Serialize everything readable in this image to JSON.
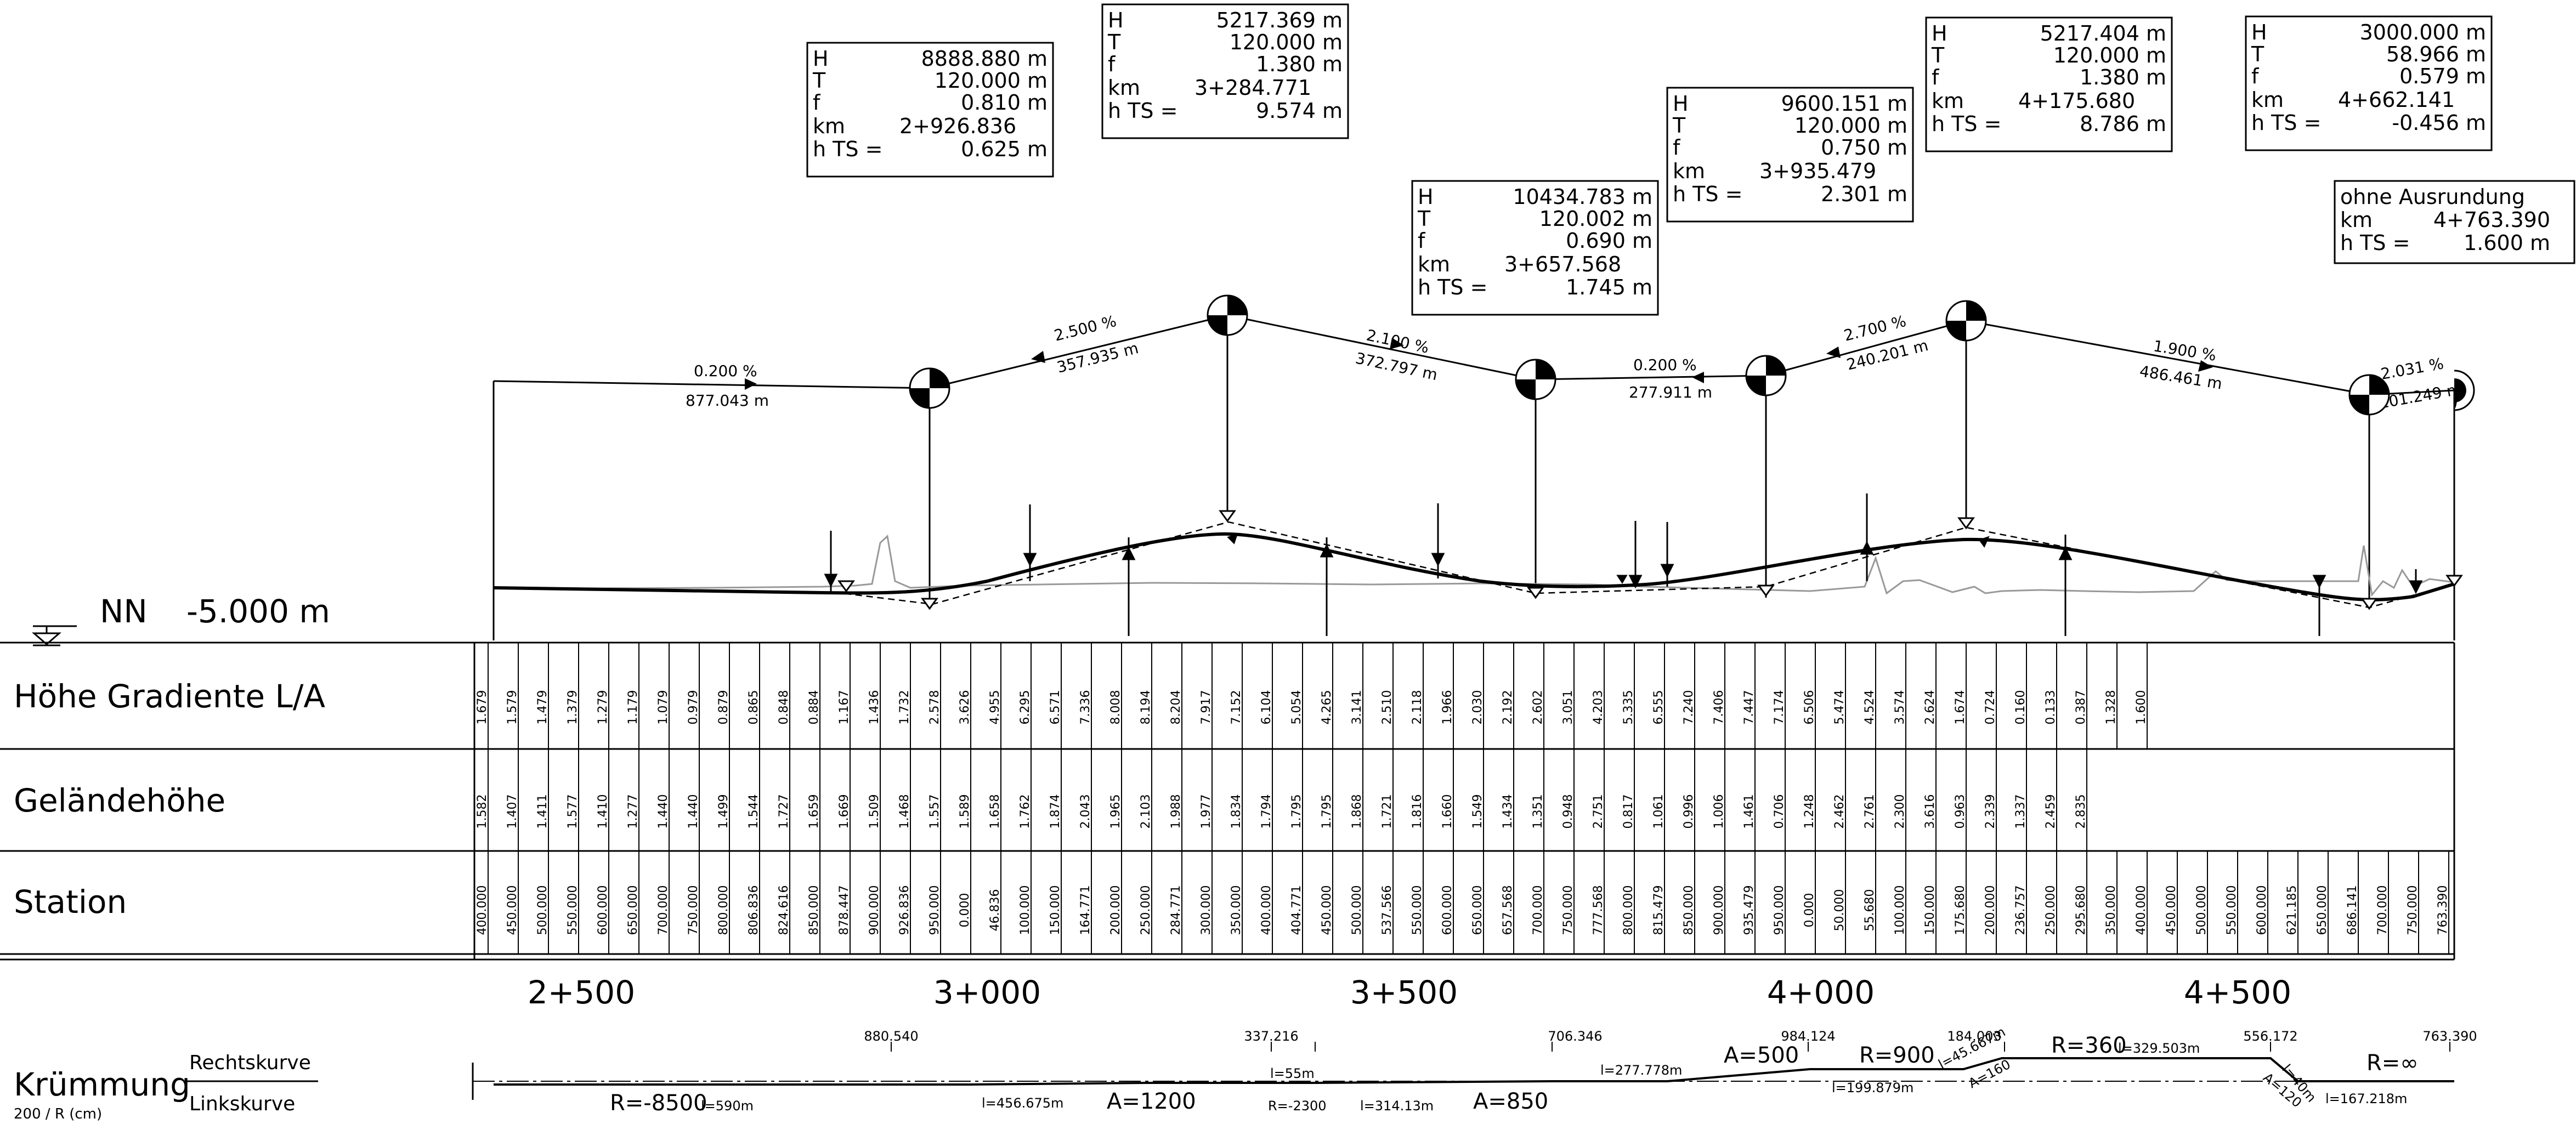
{
  "vertical_curves": [
    {
      "H": "8888.880 m",
      "T": "120.000 m",
      "f": "0.810 m",
      "km": "2+926.836",
      "hTS": "0.625 m"
    },
    {
      "H": "5217.369 m",
      "T": "120.000 m",
      "f": "1.380 m",
      "km": "3+284.771",
      "hTS": "9.574 m"
    },
    {
      "H": "10434.783 m",
      "T": "120.002 m",
      "f": "0.690 m",
      "km": "3+657.568",
      "hTS": "1.745 m"
    },
    {
      "H": "9600.151 m",
      "T": "120.000 m",
      "f": "0.750 m",
      "km": "3+935.479",
      "hTS": "2.301 m"
    },
    {
      "H": "5217.404 m",
      "T": "120.000 m",
      "f": "1.380 m",
      "km": "4+175.680",
      "hTS": "8.786 m"
    },
    {
      "H": "3000.000 m",
      "T": "58.966 m",
      "f": "0.579 m",
      "km": "4+662.141",
      "hTS": "-0.456 m"
    }
  ],
  "box_labels": {
    "H": "H",
    "T": "T",
    "f": "f",
    "km": "km",
    "hTS": "h TS ="
  },
  "end_box": {
    "title": "ohne Ausrundung",
    "km_label": "km",
    "km": "4+763.390",
    "hTS_label": "h TS =",
    "hTS": "1.600 m"
  },
  "grades": [
    {
      "pct": "0.200 %",
      "len": "877.043 m"
    },
    {
      "pct": "2.500 %",
      "len": "357.935 m"
    },
    {
      "pct": "2.100 %",
      "len": "372.797 m"
    },
    {
      "pct": "0.200 %",
      "len": "277.911 m"
    },
    {
      "pct": "2.700 %",
      "len": "240.201 m"
    },
    {
      "pct": "1.900 %",
      "len": "486.461 m"
    },
    {
      "pct": "2.031 %",
      "len": "101.249 m"
    }
  ],
  "datum": {
    "label": "NN",
    "value": "-5.000 m"
  },
  "bands": {
    "gradient": "Höhe Gradiente L/A",
    "terrain": "Geländehöhe",
    "station": "Station"
  },
  "km_labels": [
    "2+500",
    "3+000",
    "3+500",
    "4+000",
    "4+500"
  ],
  "curvature": {
    "title": "Krümmung",
    "subtitle": "200 / R (cm)",
    "right": "Rechtskurve",
    "left": "Linkskurve",
    "top_values": [
      "880.540",
      "337.216",
      "706.346",
      "984.124",
      "184.003",
      "556.172",
      "763.390"
    ],
    "labels": [
      "R=-8500",
      "l=590m",
      "l=456.675m",
      "A=1200",
      "l=55m",
      "R=-2300",
      "l=314.13m",
      "A=850",
      "l=277.778m",
      "A=500",
      "R=900",
      "l=199.879m",
      "l=45.667m",
      "A=160",
      "R=360",
      "l=329.503m",
      "l=40m",
      "A=120",
      "R=∞",
      "l=167.218m"
    ]
  },
  "stations": [
    {
      "s": "400.000",
      "g": "1.679",
      "t": "1.582"
    },
    {
      "s": "450.000",
      "g": "1.579",
      "t": "1.407"
    },
    {
      "s": "500.000",
      "g": "1.479",
      "t": "1.411"
    },
    {
      "s": "550.000",
      "g": "1.379",
      "t": "1.577"
    },
    {
      "s": "600.000",
      "g": "1.279",
      "t": "1.410"
    },
    {
      "s": "650.000",
      "g": "1.179",
      "t": "1.277"
    },
    {
      "s": "700.000",
      "g": "1.079",
      "t": "1.440"
    },
    {
      "s": "750.000",
      "g": "0.979",
      "t": "1.440"
    },
    {
      "s": "800.000",
      "g": "0.879",
      "t": "1.499"
    },
    {
      "s": "806.836",
      "g": "0.865",
      "t": "1.544"
    },
    {
      "s": "824.616",
      "g": "0.848",
      "t": "1.727"
    },
    {
      "s": "850.000",
      "g": "0.884",
      "t": "1.659"
    },
    {
      "s": "878.447",
      "g": "1.167",
      "t": "1.669"
    },
    {
      "s": "900.000",
      "g": "1.436",
      "t": "1.509"
    },
    {
      "s": "926.836",
      "g": "1.732",
      "t": "1.468"
    },
    {
      "s": "950.000",
      "g": "2.578",
      "t": "1.557"
    },
    {
      "s": "0.000",
      "g": "3.626",
      "t": "1.589"
    },
    {
      "s": "46.836",
      "g": "4.955",
      "t": "1.658"
    },
    {
      "s": "100.000",
      "g": "6.295",
      "t": "1.762"
    },
    {
      "s": "150.000",
      "g": "6.571",
      "t": "1.874"
    },
    {
      "s": "164.771",
      "g": "7.336",
      "t": "2.043"
    },
    {
      "s": "200.000",
      "g": "8.008",
      "t": "1.965"
    },
    {
      "s": "250.000",
      "g": "8.194",
      "t": "2.103"
    },
    {
      "s": "284.771",
      "g": "8.204",
      "t": "1.988"
    },
    {
      "s": "300.000",
      "g": "7.917",
      "t": "1.977"
    },
    {
      "s": "350.000",
      "g": "7.152",
      "t": "1.834"
    },
    {
      "s": "400.000",
      "g": "6.104",
      "t": "1.794"
    },
    {
      "s": "404.771",
      "g": "5.054",
      "t": "1.795"
    },
    {
      "s": "450.000",
      "g": "4.265",
      "t": "1.795"
    },
    {
      "s": "500.000",
      "g": "3.141",
      "t": "1.868"
    },
    {
      "s": "537.566",
      "g": "2.510",
      "t": "1.721"
    },
    {
      "s": "550.000",
      "g": "2.118",
      "t": "1.816"
    },
    {
      "s": "600.000",
      "g": "1.966",
      "t": "1.660"
    },
    {
      "s": "650.000",
      "g": "2.030",
      "t": "1.549"
    },
    {
      "s": "657.568",
      "g": "2.192",
      "t": "1.434"
    },
    {
      "s": "700.000",
      "g": "2.602",
      "t": "1.351"
    },
    {
      "s": "750.000",
      "g": "3.051",
      "t": "0.948"
    },
    {
      "s": "777.568",
      "g": "4.203",
      "t": "2.751"
    },
    {
      "s": "800.000",
      "g": "5.335",
      "t": "0.817"
    },
    {
      "s": "815.479",
      "g": "6.555",
      "t": "1.061"
    },
    {
      "s": "850.000",
      "g": "7.240",
      "t": "0.996"
    },
    {
      "s": "900.000",
      "g": "7.406",
      "t": "1.006"
    },
    {
      "s": "935.479",
      "g": "7.447",
      "t": "1.461"
    },
    {
      "s": "950.000",
      "g": "7.174",
      "t": "0.706"
    },
    {
      "s": "0.000",
      "g": "6.506",
      "t": "1.248"
    },
    {
      "s": "50.000",
      "g": "5.474",
      "t": "2.462"
    },
    {
      "s": "55.680",
      "g": "4.524",
      "t": "2.761"
    },
    {
      "s": "100.000",
      "g": "3.574",
      "t": "2.300"
    },
    {
      "s": "150.000",
      "g": "2.624",
      "t": "3.616"
    },
    {
      "s": "175.680",
      "g": "1.674",
      "t": "0.963"
    },
    {
      "s": "200.000",
      "g": "0.724",
      "t": "2.339"
    },
    {
      "s": "236.757",
      "g": "0.160",
      "t": "1.337"
    },
    {
      "s": "250.000",
      "g": "0.133",
      "t": "2.459"
    },
    {
      "s": "295.680",
      "g": "0.387",
      "t": "2.835"
    },
    {
      "s": "350.000",
      "g": "1.328",
      "t": ""
    },
    {
      "s": "400.000",
      "g": "1.600",
      "t": ""
    },
    {
      "s": "450.000",
      "g": "",
      "t": ""
    },
    {
      "s": "500.000",
      "g": "",
      "t": ""
    },
    {
      "s": "550.000",
      "g": "",
      "t": ""
    },
    {
      "s": "600.000",
      "g": "",
      "t": ""
    },
    {
      "s": "621.185",
      "g": "",
      "t": ""
    },
    {
      "s": "650.000",
      "g": "",
      "t": ""
    },
    {
      "s": "686.141",
      "g": "",
      "t": ""
    },
    {
      "s": "700.000",
      "g": "",
      "t": ""
    },
    {
      "s": "750.000",
      "g": "",
      "t": ""
    },
    {
      "s": "763.390",
      "g": "",
      "t": ""
    }
  ]
}
